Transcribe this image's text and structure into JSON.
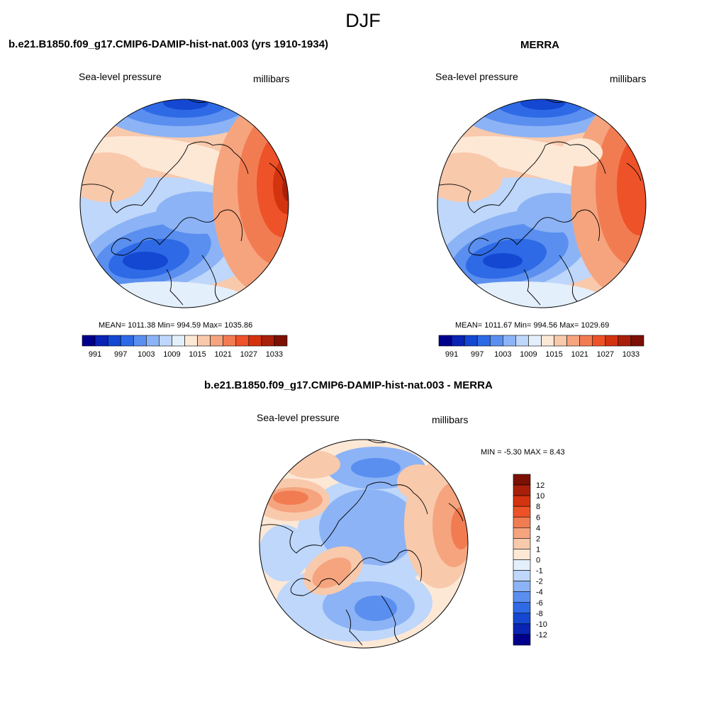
{
  "figure": {
    "title": "DJF",
    "panels": [
      {
        "title": "b.e21.B1850.f09_g17.CMIP6-DAMIP-hist-nat.003 (yrs 1910-1934)",
        "left_label": "Sea-level pressure",
        "right_label": "millibars",
        "stats": "MEAN= 1011.38  Min= 994.59  Max= 1035.86",
        "colorbar_ticks": [
          "991",
          "997",
          "1003",
          "1009",
          "1015",
          "1021",
          "1027",
          "1033"
        ]
      },
      {
        "title": "MERRA",
        "left_label": "Sea-level pressure",
        "right_label": "millibars",
        "stats": "MEAN= 1011.67  Min= 994.56  Max= 1029.69",
        "colorbar_ticks": [
          "991",
          "997",
          "1003",
          "1009",
          "1015",
          "1021",
          "1027",
          "1033"
        ]
      },
      {
        "title": "b.e21.B1850.f09_g17.CMIP6-DAMIP-hist-nat.003 - MERRA",
        "left_label": "Sea-level pressure",
        "right_label": "millibars",
        "stats": "MIN =  -5.30 MAX =   8.43",
        "colorbar_ticks": [
          "12",
          "10",
          "8",
          "6",
          "4",
          "2",
          "1",
          "0",
          "-1",
          "-2",
          "-4",
          "-6",
          "-8",
          "-10",
          "-12"
        ]
      }
    ]
  },
  "colors": {
    "abs_scale": [
      "#00008c",
      "#0a24b4",
      "#1448d2",
      "#2e6ae6",
      "#5a8ff0",
      "#8cb3f5",
      "#bed7fa",
      "#e4effc",
      "#fde8d6",
      "#f9c9ac",
      "#f5a47e",
      "#f27c52",
      "#ee5228",
      "#d4330f",
      "#a8200a",
      "#7c1004"
    ],
    "diff_scale": [
      "#7c1004",
      "#a8200a",
      "#d4330f",
      "#ee5228",
      "#f27c52",
      "#f5a47e",
      "#f9c9ac",
      "#fde8d6",
      "#e4effc",
      "#bed7fa",
      "#8cb3f5",
      "#5a8ff0",
      "#2e6ae6",
      "#1448d2",
      "#0a24b4",
      "#00008c"
    ]
  }
}
